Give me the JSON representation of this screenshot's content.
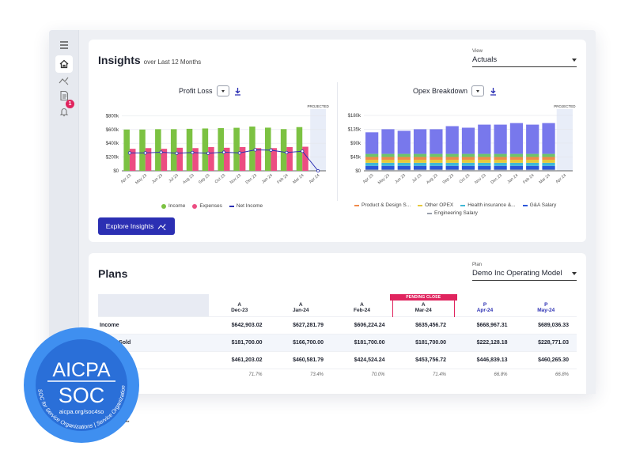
{
  "sidebar": {
    "items": [
      {
        "icon": "menu-icon"
      },
      {
        "icon": "home-icon"
      },
      {
        "icon": "insights-icon"
      },
      {
        "icon": "document-icon"
      },
      {
        "icon": "bell-icon",
        "badge": "1"
      }
    ]
  },
  "insights": {
    "title": "Insights",
    "subtitle": "over Last 12 Months",
    "view_label": "View",
    "view_value": "Actuals",
    "explore_label": "Explore Insights"
  },
  "chart_data": [
    {
      "type": "bar",
      "title": "Profit Loss",
      "categories": [
        "Apr 23",
        "May 23",
        "Jun 23",
        "Jul 23",
        "Aug 23",
        "Sep 23",
        "Oct 23",
        "Nov 23",
        "Dec 23",
        "Jan 24",
        "Feb 24",
        "Mar 24",
        "Apr 24"
      ],
      "y_ticks": [
        "$0",
        "$200k",
        "$400k",
        "$600k",
        "$800k"
      ],
      "ylim": [
        0,
        850000
      ],
      "projected_label": "PROJECTED",
      "series": [
        {
          "name": "Income",
          "type": "bar",
          "color": "#7cc242",
          "values": [
            600000,
            600000,
            605000,
            605000,
            610000,
            615000,
            620000,
            625000,
            643000,
            627000,
            606000,
            635000,
            null
          ]
        },
        {
          "name": "Expenses",
          "type": "bar",
          "color": "#ec4d82",
          "values": [
            320000,
            330000,
            320000,
            335000,
            330000,
            345000,
            335000,
            345000,
            330000,
            330000,
            345000,
            350000,
            null
          ]
        },
        {
          "name": "Net Income",
          "type": "line",
          "color": "#2b2fb3",
          "values": [
            260000,
            260000,
            270000,
            255000,
            265000,
            255000,
            270000,
            260000,
            305000,
            300000,
            265000,
            285000,
            0
          ]
        }
      ]
    },
    {
      "type": "bar",
      "title": "Opex Breakdown",
      "stacked": true,
      "categories": [
        "Apr 23",
        "May 23",
        "Jun 23",
        "Jul 23",
        "Aug 23",
        "Sep 23",
        "Oct 23",
        "Nov 23",
        "Dec 23",
        "Jan 24",
        "Feb 24",
        "Mar 24",
        "Apr 24"
      ],
      "y_ticks": [
        "$0",
        "$45k",
        "$90k",
        "$135k",
        "$180k"
      ],
      "ylim": [
        0,
        190000
      ],
      "projected_label": "PROJECTED",
      "series": [
        {
          "name": "Engineering Salary",
          "color": "#9aa0ad",
          "values": [
            4000,
            4000,
            4000,
            4000,
            4000,
            4000,
            4000,
            4000,
            4000,
            4000,
            4000,
            4000,
            null
          ]
        },
        {
          "name": "G&A Salary",
          "color": "#2b56d9",
          "values": [
            12000,
            12000,
            12000,
            12000,
            12000,
            12000,
            12000,
            12000,
            12000,
            12000,
            12000,
            12000,
            null
          ]
        },
        {
          "name": "Health insurance &...",
          "color": "#3fb8d6",
          "values": [
            10000,
            10000,
            10000,
            10000,
            10000,
            10000,
            10000,
            10000,
            10000,
            10000,
            10000,
            10000,
            null
          ]
        },
        {
          "name": "Other OPEX",
          "color": "#e7c93b",
          "values": [
            10000,
            10000,
            10000,
            10000,
            10000,
            10000,
            10000,
            10000,
            10000,
            10000,
            10000,
            10000,
            null
          ]
        },
        {
          "name": "Product & Design S...",
          "color": "#f08a4b",
          "values": [
            9000,
            9000,
            9000,
            9000,
            9000,
            9000,
            9000,
            9000,
            9000,
            9000,
            9000,
            9000,
            null
          ]
        },
        {
          "name": "",
          "color": "#6ec46b",
          "values": [
            10000,
            10000,
            10000,
            10000,
            10000,
            10000,
            10000,
            10000,
            10000,
            10000,
            10000,
            10000,
            null
          ]
        },
        {
          "name": "",
          "color": "#7878ec",
          "values": [
            70000,
            80000,
            75000,
            80000,
            80000,
            90000,
            85000,
            95000,
            95000,
            100000,
            95000,
            100000,
            null
          ]
        }
      ]
    }
  ],
  "legend_profit": [
    {
      "label": "Income",
      "color": "#7cc242",
      "shape": "dot"
    },
    {
      "label": "Expenses",
      "color": "#ec4d82",
      "shape": "dot"
    },
    {
      "label": "Net Income",
      "color": "#2b2fb3",
      "shape": "dash"
    }
  ],
  "legend_opex": [
    {
      "label": "Product & Design S...",
      "color": "#f08a4b"
    },
    {
      "label": "Other OPEX",
      "color": "#e7c93b"
    },
    {
      "label": "Health insurance &...",
      "color": "#3fb8d6"
    },
    {
      "label": "G&A Salary",
      "color": "#2b56d9"
    },
    {
      "label": "Engineering Salary",
      "color": "#9aa0ad"
    }
  ],
  "plans": {
    "title": "Plans",
    "plan_label": "Plan",
    "plan_value": "Demo Inc Operating Model",
    "pending_label": "PENDING CLOSE",
    "columns": [
      {
        "type": "A",
        "month": "Dec-23",
        "projected": false
      },
      {
        "type": "A",
        "month": "Jan-24",
        "projected": false
      },
      {
        "type": "A",
        "month": "Feb-24",
        "projected": false
      },
      {
        "type": "A",
        "month": "Mar-24",
        "projected": false,
        "pending": true
      },
      {
        "type": "P",
        "month": "Apr-24",
        "projected": true
      },
      {
        "type": "P",
        "month": "May-24",
        "projected": true
      }
    ],
    "rows": [
      {
        "label": "Income",
        "values": [
          "$642,903.02",
          "$627,281.79",
          "$606,224.24",
          "$635,456.72",
          "$668,967.31",
          "$689,036.33"
        ]
      },
      {
        "label": "Goods Sold",
        "values": [
          "$181,700.00",
          "$166,700.00",
          "$181,700.00",
          "$181,700.00",
          "$222,128.18",
          "$228,771.03"
        ]
      },
      {
        "label": "",
        "values": [
          "$461,203.02",
          "$460,581.79",
          "$424,524.24",
          "$453,756.72",
          "$446,839.13",
          "$460,265.30"
        ]
      },
      {
        "label": "",
        "values": [
          "71.7%",
          "73.4%",
          "70.0%",
          "71.4%",
          "66.8%",
          "66.8%"
        ],
        "pct": true
      }
    ]
  },
  "aicpa": {
    "top": "AICPA",
    "mid": "SOC",
    "url": "aicpa.org/soc4so",
    "ring": "SOC for Service Organizations | Service Organizations",
    "tm": "™"
  }
}
